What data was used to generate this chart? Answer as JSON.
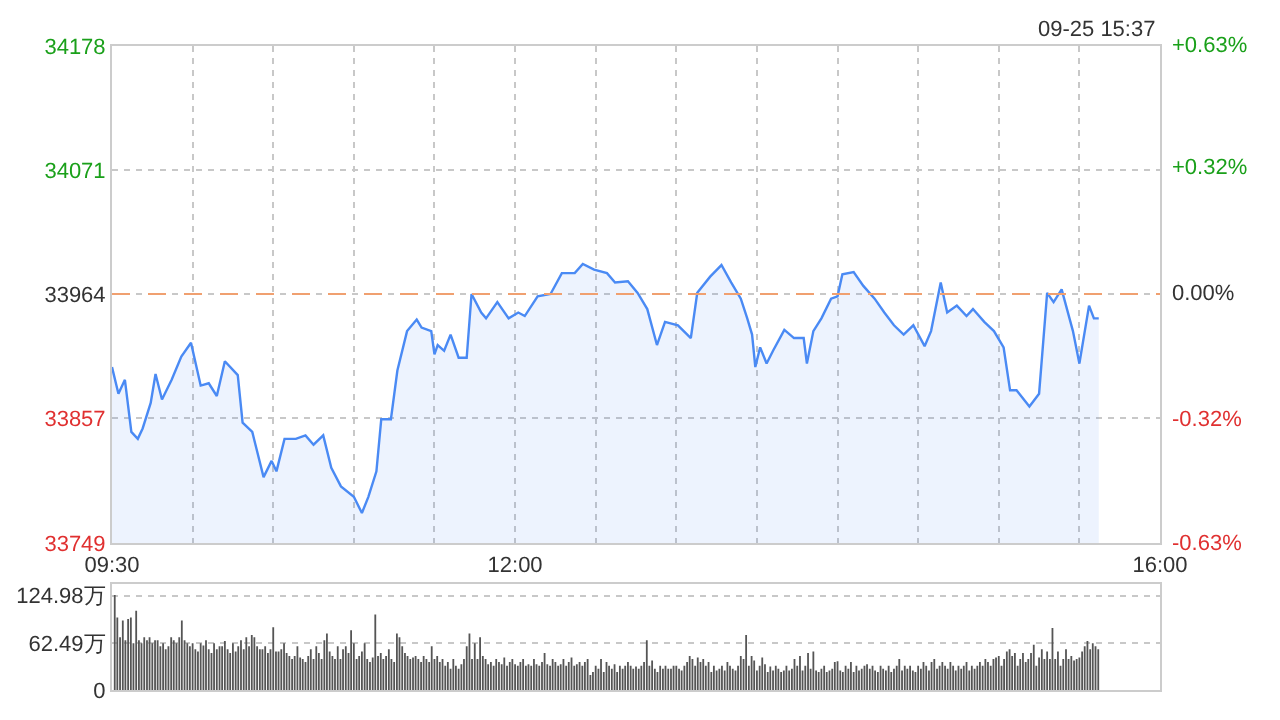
{
  "chart_data": [
    {
      "type": "area",
      "color": "#4a8af4",
      "x": [
        9.5,
        9.54,
        9.58,
        9.62,
        9.66,
        9.69,
        9.74,
        9.77,
        9.81,
        9.87,
        9.93,
        9.99,
        10.05,
        10.1,
        10.15,
        10.2,
        10.28,
        10.31,
        10.37,
        10.44,
        10.49,
        10.52,
        10.57,
        10.64,
        10.7,
        10.75,
        10.81,
        10.86,
        10.92,
        11.0,
        11.05,
        11.09,
        11.14,
        11.17,
        11.23,
        11.27,
        11.33,
        11.39,
        11.42,
        11.48,
        11.5,
        11.52,
        11.56,
        11.6,
        11.65,
        11.7,
        11.73,
        11.79,
        11.82,
        11.89,
        11.96,
        12.02,
        12.06,
        12.14,
        12.22,
        12.29,
        12.37,
        12.42,
        12.49,
        12.57,
        12.62,
        12.7,
        12.76,
        12.82,
        12.88,
        12.93,
        13.01,
        13.09,
        13.13,
        13.21,
        13.28,
        13.34,
        13.4,
        13.44,
        13.47,
        13.49,
        13.52,
        13.56,
        13.6,
        13.67,
        13.73,
        13.79,
        13.81,
        13.85,
        13.9,
        13.96,
        14.0,
        14.03,
        14.1,
        14.16,
        14.23,
        14.29,
        14.35,
        14.41,
        14.47,
        14.54,
        14.58,
        14.64,
        14.68,
        14.74,
        14.8,
        14.84,
        14.91,
        14.97,
        15.03,
        15.07,
        15.11,
        15.19,
        15.25,
        15.3,
        15.34,
        15.39,
        15.46,
        15.5,
        15.56,
        15.59,
        15.62
      ],
      "values": [
        33901,
        33878,
        33890,
        33845,
        33839,
        33848,
        33870,
        33895,
        33873,
        33890,
        33910,
        33922,
        33885,
        33887,
        33876,
        33906,
        33894,
        33853,
        33845,
        33806,
        33820,
        33811,
        33839,
        33839,
        33842,
        33834,
        33842,
        33814,
        33798,
        33789,
        33775,
        33789,
        33811,
        33856,
        33856,
        33898,
        33932,
        33942,
        33935,
        33932,
        33912,
        33920,
        33915,
        33929,
        33909,
        33909,
        33964,
        33948,
        33943,
        33957,
        33943,
        33948,
        33945,
        33962,
        33964,
        33982,
        33982,
        33990,
        33985,
        33982,
        33974,
        33975,
        33965,
        33951,
        33920,
        33940,
        33937,
        33926,
        33965,
        33979,
        33989,
        33974,
        33960,
        33943,
        33929,
        33901,
        33918,
        33904,
        33915,
        33933,
        33926,
        33926,
        33904,
        33932,
        33943,
        33960,
        33962,
        33981,
        33983,
        33971,
        33960,
        33948,
        33937,
        33929,
        33937,
        33919,
        33932,
        33974,
        33948,
        33954,
        33945,
        33951,
        33940,
        33932,
        33918,
        33881,
        33881,
        33867,
        33878,
        33965,
        33957,
        33968,
        33932,
        33904,
        33954,
        33943,
        33943
      ],
      "xlim": [
        9.5,
        16
      ],
      "xticks": [
        {
          "value": 9.5,
          "label": "09:30"
        },
        {
          "value": 10,
          "label": null
        },
        {
          "value": 10.5,
          "label": null
        },
        {
          "value": 11,
          "label": null
        },
        {
          "value": 11.5,
          "label": null
        },
        {
          "value": 12,
          "label": "12:00"
        },
        {
          "value": 12.5,
          "label": null
        },
        {
          "value": 13,
          "label": null
        },
        {
          "value": 13.5,
          "label": null
        },
        {
          "value": 14,
          "label": null
        },
        {
          "value": 14.5,
          "label": null
        },
        {
          "value": 15,
          "label": null
        },
        {
          "value": 15.5,
          "label": null
        },
        {
          "value": 16,
          "label": "16:00"
        }
      ],
      "ylim": [
        33749,
        34178
      ],
      "yticks": [
        33749,
        33857,
        33964,
        34071,
        34178
      ],
      "y2lim": [
        -0.63,
        0.63
      ],
      "y2ticks": [
        {
          "value": -0.63,
          "label": "-0.63%"
        },
        {
          "value": -0.32,
          "label": "-0.32%"
        },
        {
          "value": 0,
          "label": "0.00%"
        },
        {
          "value": 0.32,
          "label": "+0.32%"
        },
        {
          "value": 0.63,
          "label": "+0.63%"
        }
      ],
      "ref_lines": [
        {
          "axis": "y",
          "value": 33964,
          "color": "#f0a070",
          "line_style": "dashed"
        }
      ],
      "grid": true,
      "annotations": [
        "09-25 15:37"
      ]
    },
    {
      "type": "bar",
      "color": "#555555",
      "tick_labels": "y",
      "grid": "y",
      "x": [
        9.517,
        9.533,
        9.55,
        9.567,
        9.583,
        9.6,
        9.617,
        9.633,
        9.65,
        9.667,
        9.683,
        9.7,
        9.717,
        9.733,
        9.75,
        9.767,
        9.783,
        9.8,
        9.817,
        9.833,
        9.85,
        9.867,
        9.883,
        9.9,
        9.917,
        9.933,
        9.95,
        9.967,
        9.983,
        10,
        10.017,
        10.033,
        10.05,
        10.067,
        10.083,
        10.1,
        10.117,
        10.133,
        10.15,
        10.167,
        10.183,
        10.2,
        10.217,
        10.233,
        10.25,
        10.267,
        10.283,
        10.3,
        10.317,
        10.333,
        10.35,
        10.367,
        10.383,
        10.4,
        10.417,
        10.433,
        10.45,
        10.467,
        10.483,
        10.5,
        10.517,
        10.533,
        10.55,
        10.567,
        10.583,
        10.6,
        10.617,
        10.633,
        10.65,
        10.667,
        10.683,
        10.7,
        10.717,
        10.733,
        10.75,
        10.767,
        10.783,
        10.8,
        10.817,
        10.833,
        10.85,
        10.867,
        10.883,
        10.9,
        10.917,
        10.933,
        10.95,
        10.967,
        10.983,
        11,
        11.017,
        11.033,
        11.05,
        11.067,
        11.083,
        11.1,
        11.117,
        11.133,
        11.15,
        11.167,
        11.183,
        11.2,
        11.217,
        11.233,
        11.25,
        11.267,
        11.283,
        11.3,
        11.317,
        11.333,
        11.35,
        11.367,
        11.383,
        11.4,
        11.417,
        11.433,
        11.45,
        11.467,
        11.483,
        11.5,
        11.517,
        11.533,
        11.55,
        11.567,
        11.583,
        11.6,
        11.617,
        11.633,
        11.65,
        11.667,
        11.683,
        11.7,
        11.717,
        11.733,
        11.75,
        11.767,
        11.783,
        11.8,
        11.817,
        11.833,
        11.85,
        11.867,
        11.883,
        11.9,
        11.917,
        11.933,
        11.95,
        11.967,
        11.983,
        12,
        12.017,
        12.033,
        12.05,
        12.067,
        12.083,
        12.1,
        12.117,
        12.133,
        12.15,
        12.167,
        12.183,
        12.2,
        12.217,
        12.233,
        12.25,
        12.267,
        12.283,
        12.3,
        12.317,
        12.333,
        12.35,
        12.367,
        12.383,
        12.4,
        12.417,
        12.433,
        12.45,
        12.467,
        12.483,
        12.5,
        12.517,
        12.533,
        12.55,
        12.567,
        12.583,
        12.6,
        12.617,
        12.633,
        12.65,
        12.667,
        12.683,
        12.7,
        12.717,
        12.733,
        12.75,
        12.767,
        12.783,
        12.8,
        12.817,
        12.833,
        12.85,
        12.867,
        12.883,
        12.9,
        12.917,
        12.933,
        12.95,
        12.967,
        12.983,
        13,
        13.017,
        13.033,
        13.05,
        13.067,
        13.083,
        13.1,
        13.117,
        13.133,
        13.15,
        13.167,
        13.183,
        13.2,
        13.217,
        13.233,
        13.25,
        13.267,
        13.283,
        13.3,
        13.317,
        13.333,
        13.35,
        13.367,
        13.383,
        13.4,
        13.417,
        13.433,
        13.45,
        13.467,
        13.483,
        13.5,
        13.517,
        13.533,
        13.55,
        13.567,
        13.583,
        13.6,
        13.617,
        13.633,
        13.65,
        13.667,
        13.683,
        13.7,
        13.717,
        13.733,
        13.75,
        13.767,
        13.783,
        13.8,
        13.817,
        13.833,
        13.85,
        13.867,
        13.883,
        13.9,
        13.917,
        13.933,
        13.95,
        13.967,
        13.983,
        14,
        14.017,
        14.033,
        14.05,
        14.067,
        14.083,
        14.1,
        14.117,
        14.133,
        14.15,
        14.167,
        14.183,
        14.2,
        14.217,
        14.233,
        14.25,
        14.267,
        14.283,
        14.3,
        14.317,
        14.333,
        14.35,
        14.367,
        14.383,
        14.4,
        14.417,
        14.433,
        14.45,
        14.467,
        14.483,
        14.5,
        14.517,
        14.533,
        14.55,
        14.567,
        14.583,
        14.6,
        14.617,
        14.633,
        14.65,
        14.667,
        14.683,
        14.7,
        14.717,
        14.733,
        14.75,
        14.767,
        14.783,
        14.8,
        14.817,
        14.833,
        14.85,
        14.867,
        14.883,
        14.9,
        14.917,
        14.933,
        14.95,
        14.967,
        14.983,
        15,
        15.017,
        15.033,
        15.05,
        15.067,
        15.083,
        15.1,
        15.117,
        15.133,
        15.15,
        15.167,
        15.183,
        15.2,
        15.217,
        15.233,
        15.25,
        15.267,
        15.283,
        15.3,
        15.317,
        15.333,
        15.35,
        15.367,
        15.383,
        15.4,
        15.417,
        15.433,
        15.45,
        15.467,
        15.483,
        15.5,
        15.517,
        15.533,
        15.55,
        15.567,
        15.583,
        15.6,
        15.617
      ],
      "values": [
        126,
        96,
        70,
        92,
        66,
        94,
        96,
        62,
        105,
        66,
        62,
        70,
        66,
        70,
        62,
        66,
        66,
        58,
        62,
        54,
        58,
        70,
        66,
        62,
        70,
        92,
        66,
        62,
        58,
        62,
        54,
        51,
        62,
        59,
        66,
        54,
        49,
        62,
        54,
        58,
        58,
        65,
        54,
        49,
        62,
        51,
        58,
        66,
        54,
        70,
        58,
        73,
        70,
        58,
        54,
        54,
        58,
        49,
        54,
        83,
        51,
        51,
        54,
        62,
        49,
        45,
        41,
        45,
        58,
        43,
        41,
        37,
        45,
        54,
        41,
        58,
        49,
        41,
        66,
        75,
        51,
        45,
        41,
        58,
        41,
        54,
        58,
        49,
        79,
        62,
        41,
        45,
        51,
        62,
        41,
        37,
        43,
        100,
        45,
        49,
        41,
        45,
        54,
        41,
        37,
        75,
        70,
        58,
        49,
        45,
        41,
        43,
        45,
        41,
        37,
        45,
        41,
        37,
        58,
        41,
        45,
        37,
        41,
        32,
        37,
        28,
        41,
        32,
        28,
        34,
        41,
        58,
        75,
        41,
        62,
        41,
        70,
        45,
        41,
        34,
        37,
        32,
        41,
        37,
        34,
        43,
        32,
        37,
        41,
        34,
        32,
        37,
        41,
        32,
        34,
        32,
        41,
        34,
        32,
        37,
        49,
        34,
        32,
        41,
        37,
        32,
        34,
        41,
        32,
        37,
        43,
        32,
        34,
        37,
        32,
        37,
        41,
        20,
        24,
        32,
        28,
        41,
        24,
        37,
        32,
        28,
        34,
        24,
        32,
        28,
        32,
        37,
        32,
        28,
        31,
        28,
        32,
        37,
        66,
        32,
        39,
        28,
        24,
        32,
        28,
        32,
        28,
        28,
        32,
        32,
        28,
        26,
        32,
        37,
        45,
        41,
        32,
        43,
        37,
        41,
        32,
        37,
        24,
        32,
        26,
        28,
        32,
        26,
        37,
        32,
        28,
        26,
        32,
        45,
        41,
        73,
        32,
        45,
        39,
        26,
        32,
        43,
        34,
        24,
        31,
        26,
        32,
        28,
        24,
        26,
        32,
        26,
        28,
        41,
        32,
        45,
        26,
        32,
        49,
        28,
        51,
        26,
        24,
        28,
        32,
        24,
        26,
        28,
        37,
        38,
        26,
        24,
        32,
        28,
        37,
        24,
        32,
        26,
        28,
        32,
        34,
        28,
        32,
        26,
        24,
        32,
        28,
        26,
        32,
        24,
        28,
        32,
        41,
        26,
        32,
        28,
        32,
        26,
        24,
        32,
        28,
        37,
        32,
        26,
        37,
        41,
        28,
        32,
        37,
        32,
        28,
        37,
        32,
        26,
        32,
        28,
        32,
        37,
        26,
        32,
        28,
        32,
        37,
        32,
        41,
        37,
        32,
        41,
        43,
        45,
        32,
        41,
        51,
        54,
        45,
        49,
        32,
        41,
        49,
        37,
        41,
        49,
        60,
        32,
        43,
        54,
        41,
        51,
        41,
        82,
        41,
        51,
        32,
        41,
        54,
        41,
        45,
        39,
        41,
        43,
        51,
        58,
        65,
        54,
        62,
        58,
        54
      ],
      "xlim": [
        9.5,
        16
      ],
      "ylim": [
        0,
        140
      ],
      "yticks": [
        0,
        {
          "value": 62.49,
          "label": "62.49万"
        },
        {
          "value": 124.98,
          "label": "124.98万"
        }
      ]
    }
  ]
}
